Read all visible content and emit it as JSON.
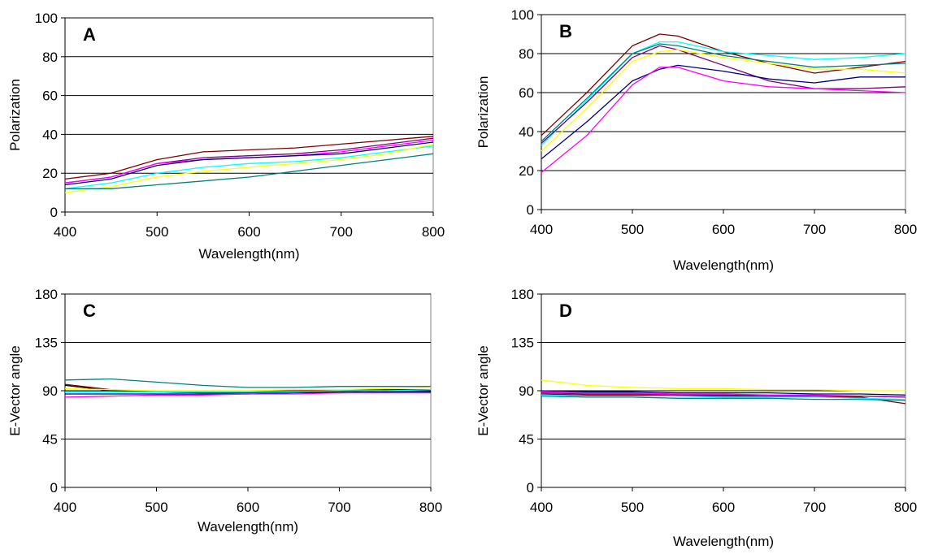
{
  "chart_data": [
    {
      "type": "line",
      "panel_label": "A",
      "xlabel": "Wavelength(nm)",
      "ylabel": "Polarization",
      "xlim": [
        400,
        800
      ],
      "ylim": [
        0,
        100
      ],
      "xticks": [
        "400",
        "500",
        "600",
        "700",
        "800"
      ],
      "yticks": [
        "0",
        "20",
        "40",
        "60",
        "80",
        "100"
      ],
      "grid": "horizontal",
      "series": [
        {
          "color": "#800000",
          "x": [
            400,
            450,
            500,
            550,
            600,
            650,
            700,
            750,
            800
          ],
          "y": [
            17,
            20,
            27,
            31,
            32,
            33,
            35,
            37,
            39
          ]
        },
        {
          "color": "#800080",
          "x": [
            400,
            450,
            500,
            550,
            600,
            650,
            700,
            750,
            800
          ],
          "y": [
            15,
            18,
            25,
            28,
            29,
            30,
            32,
            35,
            38
          ]
        },
        {
          "color": "#ff00ff",
          "x": [
            400,
            450,
            500,
            550,
            600,
            650,
            700,
            750,
            800
          ],
          "y": [
            15,
            18,
            25,
            27,
            28,
            29,
            31,
            34,
            37
          ]
        },
        {
          "color": "#000080",
          "x": [
            400,
            450,
            500,
            550,
            600,
            650,
            700,
            750,
            800
          ],
          "y": [
            14,
            17,
            24,
            27,
            28,
            29,
            30,
            33,
            36
          ]
        },
        {
          "color": "#00ffff",
          "x": [
            400,
            450,
            500,
            550,
            600,
            650,
            700,
            750,
            800
          ],
          "y": [
            12,
            15,
            20,
            23,
            25,
            26,
            28,
            31,
            34
          ]
        },
        {
          "color": "#ffff00",
          "x": [
            400,
            450,
            500,
            550,
            600,
            650,
            700,
            750,
            800
          ],
          "y": [
            10,
            13,
            18,
            21,
            23,
            25,
            27,
            30,
            35
          ]
        },
        {
          "color": "#008080",
          "x": [
            400,
            450,
            500,
            550,
            600,
            650,
            700,
            750,
            800
          ],
          "y": [
            12,
            12,
            14,
            16,
            18,
            21,
            24,
            27,
            30
          ]
        }
      ]
    },
    {
      "type": "line",
      "panel_label": "B",
      "xlabel": "Wavelength(nm)",
      "ylabel": "Polarization",
      "xlim": [
        400,
        800
      ],
      "ylim": [
        0,
        100
      ],
      "xticks": [
        "400",
        "500",
        "600",
        "700",
        "800"
      ],
      "yticks": [
        "0",
        "20",
        "40",
        "60",
        "80",
        "100"
      ],
      "grid": "horizontal",
      "series": [
        {
          "color": "#800000",
          "x": [
            400,
            450,
            500,
            530,
            550,
            600,
            650,
            700,
            750,
            800
          ],
          "y": [
            38,
            60,
            84,
            90,
            89,
            81,
            75,
            70,
            73,
            76
          ]
        },
        {
          "color": "#00ffff",
          "x": [
            400,
            450,
            500,
            530,
            550,
            600,
            650,
            700,
            750,
            800
          ],
          "y": [
            33,
            56,
            80,
            86,
            86,
            81,
            79,
            77,
            78,
            80
          ]
        },
        {
          "color": "#008080",
          "x": [
            400,
            450,
            500,
            530,
            550,
            600,
            650,
            700,
            750,
            800
          ],
          "y": [
            35,
            57,
            80,
            85,
            84,
            79,
            76,
            73,
            74,
            75
          ]
        },
        {
          "color": "#800080",
          "x": [
            400,
            450,
            500,
            530,
            550,
            600,
            650,
            700,
            750,
            800
          ],
          "y": [
            34,
            55,
            78,
            84,
            82,
            74,
            66,
            62,
            62,
            63
          ]
        },
        {
          "color": "#ffff00",
          "x": [
            400,
            450,
            500,
            530,
            550,
            600,
            650,
            700,
            750,
            800
          ],
          "y": [
            30,
            52,
            76,
            81,
            82,
            78,
            75,
            72,
            72,
            70
          ]
        },
        {
          "color": "#000080",
          "x": [
            400,
            450,
            500,
            530,
            550,
            600,
            650,
            700,
            750,
            800
          ],
          "y": [
            26,
            45,
            66,
            72,
            74,
            71,
            67,
            65,
            68,
            68
          ]
        },
        {
          "color": "#ff00ff",
          "x": [
            400,
            450,
            500,
            530,
            550,
            600,
            650,
            700,
            750,
            800
          ],
          "y": [
            19,
            38,
            64,
            73,
            73,
            66,
            63,
            62,
            61,
            60
          ]
        }
      ]
    },
    {
      "type": "line",
      "panel_label": "C",
      "xlabel": "Wavelength(nm)",
      "ylabel": "E-Vector angle",
      "xlim": [
        400,
        800
      ],
      "ylim": [
        0,
        180
      ],
      "xticks": [
        "400",
        "500",
        "600",
        "700",
        "800"
      ],
      "yticks": [
        "0",
        "45",
        "90",
        "135",
        "180"
      ],
      "grid": "horizontal",
      "series": [
        {
          "color": "#008080",
          "x": [
            400,
            450,
            500,
            550,
            600,
            650,
            700,
            750,
            800
          ],
          "y": [
            100,
            101,
            98,
            95,
            93,
            93,
            94,
            94,
            94
          ]
        },
        {
          "color": "#800000",
          "x": [
            400,
            450,
            500,
            550,
            600,
            650,
            700,
            750,
            800
          ],
          "y": [
            96,
            91,
            89,
            89,
            89,
            90,
            91,
            91,
            91
          ]
        },
        {
          "color": "#000000",
          "x": [
            400,
            450,
            500,
            550,
            600,
            650,
            700,
            750,
            800
          ],
          "y": [
            95,
            90,
            89,
            88,
            88,
            89,
            89,
            90,
            91
          ]
        },
        {
          "color": "#ffff00",
          "x": [
            400,
            450,
            500,
            550,
            600,
            650,
            700,
            750,
            800
          ],
          "y": [
            92,
            91,
            90,
            90,
            90,
            91,
            91,
            92,
            93
          ]
        },
        {
          "color": "#00ffff",
          "x": [
            400,
            450,
            500,
            550,
            600,
            650,
            700,
            750,
            800
          ],
          "y": [
            89,
            89,
            89,
            89,
            89,
            89,
            90,
            90,
            91
          ]
        },
        {
          "color": "#000080",
          "x": [
            400,
            450,
            500,
            550,
            600,
            650,
            700,
            750,
            800
          ],
          "y": [
            87,
            87,
            87,
            87,
            87,
            88,
            88,
            89,
            89
          ]
        },
        {
          "color": "#ff00ff",
          "x": [
            400,
            450,
            500,
            550,
            600,
            650,
            700,
            750,
            800
          ],
          "y": [
            84,
            85,
            86,
            86,
            87,
            87,
            88,
            88,
            88
          ]
        }
      ]
    },
    {
      "type": "line",
      "panel_label": "D",
      "xlabel": "Wavelength(nm)",
      "ylabel": "E-Vector angle",
      "xlim": [
        400,
        800
      ],
      "ylim": [
        0,
        180
      ],
      "xticks": [
        "400",
        "500",
        "600",
        "700",
        "800"
      ],
      "yticks": [
        "0",
        "45",
        "90",
        "135",
        "180"
      ],
      "grid": "horizontal",
      "series": [
        {
          "color": "#ffff00",
          "x": [
            400,
            450,
            500,
            550,
            600,
            650,
            700,
            750,
            800
          ],
          "y": [
            100,
            95,
            93,
            92,
            92,
            91,
            91,
            90,
            90
          ]
        },
        {
          "color": "#000080",
          "x": [
            400,
            450,
            500,
            550,
            600,
            650,
            700,
            750,
            800
          ],
          "y": [
            90,
            89,
            89,
            88,
            88,
            88,
            87,
            87,
            86
          ]
        },
        {
          "color": "#ff00ff",
          "x": [
            400,
            450,
            500,
            550,
            600,
            650,
            700,
            750,
            800
          ],
          "y": [
            89,
            88,
            88,
            87,
            87,
            86,
            86,
            85,
            84
          ]
        },
        {
          "color": "#800080",
          "x": [
            400,
            450,
            500,
            550,
            600,
            650,
            700,
            750,
            800
          ],
          "y": [
            88,
            87,
            87,
            86,
            86,
            85,
            85,
            85,
            84
          ]
        },
        {
          "color": "#800000",
          "x": [
            400,
            450,
            500,
            550,
            600,
            650,
            700,
            750,
            800
          ],
          "y": [
            87,
            86,
            86,
            85,
            85,
            85,
            84,
            84,
            78
          ]
        },
        {
          "color": "#00ffff",
          "x": [
            400,
            450,
            500,
            550,
            600,
            650,
            700,
            750,
            800
          ],
          "y": [
            86,
            85,
            85,
            85,
            84,
            84,
            84,
            83,
            82
          ]
        },
        {
          "color": "#008080",
          "x": [
            400,
            450,
            500,
            550,
            600,
            650,
            700,
            750,
            800
          ],
          "y": [
            85,
            84,
            84,
            83,
            83,
            83,
            82,
            82,
            81
          ]
        }
      ]
    }
  ]
}
